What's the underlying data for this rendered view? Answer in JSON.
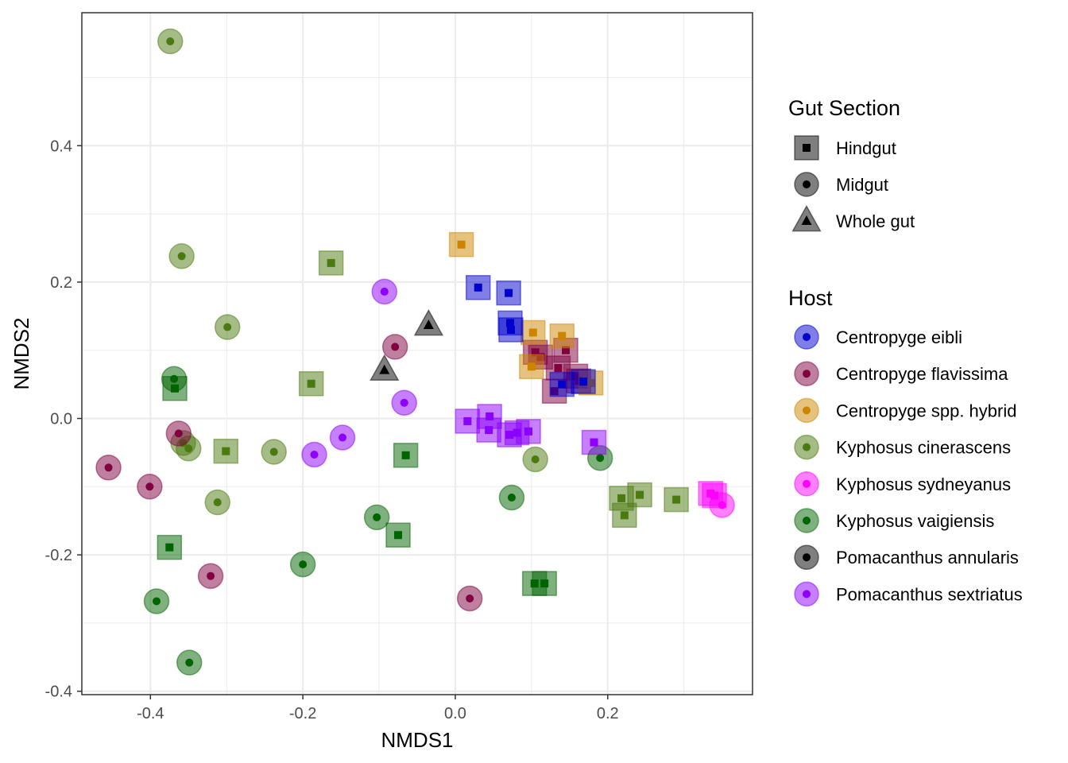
{
  "chart_data": {
    "type": "scatter",
    "xlabel": "NMDS1",
    "ylabel": "NMDS2",
    "xlim": [
      -0.49,
      0.39
    ],
    "ylim": [
      -0.405,
      0.595
    ],
    "x_ticks": [
      -0.4,
      -0.2,
      0.0,
      0.2
    ],
    "x_tick_labels": [
      "-0.4",
      "-0.2",
      "0.0",
      "0.2"
    ],
    "y_ticks": [
      -0.4,
      -0.2,
      0.0,
      0.2,
      0.4
    ],
    "y_tick_labels": [
      "-0.4",
      "-0.2",
      "0.0",
      "0.2",
      "0.4"
    ],
    "grid": true,
    "legend_position": "right",
    "shape_legend": {
      "title": "Gut Section",
      "items": [
        {
          "label": "Hindgut",
          "shape": "square"
        },
        {
          "label": "Midgut",
          "shape": "circle"
        },
        {
          "label": "Whole gut",
          "shape": "triangle"
        }
      ]
    },
    "color_legend": {
      "title": "Host",
      "items": [
        {
          "label": "Centropyge eibli",
          "color": "#0000cd"
        },
        {
          "label": "Centropyge flavissima",
          "color": "#800040"
        },
        {
          "label": "Centropyge spp. hybrid",
          "color": "#cd8500"
        },
        {
          "label": "Kyphosus cinerascens",
          "color": "#4b7a10"
        },
        {
          "label": "Kyphosus sydneyanus",
          "color": "#ff00ff"
        },
        {
          "label": "Kyphosus vaigiensis",
          "color": "#006400"
        },
        {
          "label": "Pomacanthus annularis",
          "color": "#000000"
        },
        {
          "label": "Pomacanthus sextriatus",
          "color": "#8b00ff"
        }
      ]
    },
    "points": [
      {
        "x": -0.374,
        "y": 0.553,
        "host": "Kyphosus cinerascens",
        "gut": "Midgut"
      },
      {
        "x": -0.359,
        "y": 0.238,
        "host": "Kyphosus cinerascens",
        "gut": "Midgut"
      },
      {
        "x": -0.299,
        "y": 0.134,
        "host": "Kyphosus cinerascens",
        "gut": "Midgut"
      },
      {
        "x": -0.357,
        "y": -0.036,
        "host": "Kyphosus cinerascens",
        "gut": "Midgut"
      },
      {
        "x": -0.35,
        "y": -0.044,
        "host": "Kyphosus cinerascens",
        "gut": "Midgut"
      },
      {
        "x": -0.238,
        "y": -0.049,
        "host": "Kyphosus cinerascens",
        "gut": "Midgut"
      },
      {
        "x": -0.312,
        "y": -0.123,
        "host": "Kyphosus cinerascens",
        "gut": "Midgut"
      },
      {
        "x": 0.105,
        "y": -0.06,
        "host": "Kyphosus cinerascens",
        "gut": "Midgut"
      },
      {
        "x": -0.163,
        "y": 0.228,
        "host": "Kyphosus cinerascens",
        "gut": "Hindgut"
      },
      {
        "x": -0.189,
        "y": 0.051,
        "host": "Kyphosus cinerascens",
        "gut": "Hindgut"
      },
      {
        "x": -0.301,
        "y": -0.048,
        "host": "Kyphosus cinerascens",
        "gut": "Hindgut"
      },
      {
        "x": 0.218,
        "y": -0.117,
        "host": "Kyphosus cinerascens",
        "gut": "Hindgut"
      },
      {
        "x": 0.222,
        "y": -0.142,
        "host": "Kyphosus cinerascens",
        "gut": "Hindgut"
      },
      {
        "x": 0.242,
        "y": -0.112,
        "host": "Kyphosus cinerascens",
        "gut": "Hindgut"
      },
      {
        "x": 0.29,
        "y": -0.119,
        "host": "Kyphosus cinerascens",
        "gut": "Hindgut"
      },
      {
        "x": -0.369,
        "y": 0.058,
        "host": "Kyphosus vaigiensis",
        "gut": "Midgut"
      },
      {
        "x": -0.103,
        "y": -0.145,
        "host": "Kyphosus vaigiensis",
        "gut": "Midgut"
      },
      {
        "x": 0.074,
        "y": -0.116,
        "host": "Kyphosus vaigiensis",
        "gut": "Midgut"
      },
      {
        "x": 0.19,
        "y": -0.058,
        "host": "Kyphosus vaigiensis",
        "gut": "Midgut"
      },
      {
        "x": -0.2,
        "y": -0.214,
        "host": "Kyphosus vaigiensis",
        "gut": "Midgut"
      },
      {
        "x": -0.392,
        "y": -0.268,
        "host": "Kyphosus vaigiensis",
        "gut": "Midgut"
      },
      {
        "x": -0.349,
        "y": -0.358,
        "host": "Kyphosus vaigiensis",
        "gut": "Midgut"
      },
      {
        "x": -0.368,
        "y": 0.044,
        "host": "Kyphosus vaigiensis",
        "gut": "Hindgut"
      },
      {
        "x": -0.065,
        "y": -0.054,
        "host": "Kyphosus vaigiensis",
        "gut": "Hindgut"
      },
      {
        "x": -0.075,
        "y": -0.171,
        "host": "Kyphosus vaigiensis",
        "gut": "Hindgut"
      },
      {
        "x": -0.375,
        "y": -0.189,
        "host": "Kyphosus vaigiensis",
        "gut": "Hindgut"
      },
      {
        "x": 0.104,
        "y": -0.242,
        "host": "Kyphosus vaigiensis",
        "gut": "Hindgut"
      },
      {
        "x": 0.117,
        "y": -0.242,
        "host": "Kyphosus vaigiensis",
        "gut": "Hindgut"
      },
      {
        "x": -0.455,
        "y": -0.072,
        "host": "Centropyge flavissima",
        "gut": "Midgut"
      },
      {
        "x": -0.401,
        "y": -0.1,
        "host": "Centropyge flavissima",
        "gut": "Midgut"
      },
      {
        "x": -0.363,
        "y": -0.022,
        "host": "Centropyge flavissima",
        "gut": "Midgut"
      },
      {
        "x": -0.321,
        "y": -0.231,
        "host": "Centropyge flavissima",
        "gut": "Midgut"
      },
      {
        "x": -0.079,
        "y": 0.105,
        "host": "Centropyge flavissima",
        "gut": "Midgut"
      },
      {
        "x": 0.019,
        "y": -0.264,
        "host": "Centropyge flavissima",
        "gut": "Midgut"
      },
      {
        "x": 0.105,
        "y": 0.097,
        "host": "Centropyge flavissima",
        "gut": "Hindgut"
      },
      {
        "x": 0.112,
        "y": 0.09,
        "host": "Centropyge flavissima",
        "gut": "Hindgut"
      },
      {
        "x": 0.145,
        "y": 0.1,
        "host": "Centropyge flavissima",
        "gut": "Hindgut"
      },
      {
        "x": 0.135,
        "y": 0.074,
        "host": "Centropyge flavissima",
        "gut": "Hindgut"
      },
      {
        "x": 0.158,
        "y": 0.062,
        "host": "Centropyge flavissima",
        "gut": "Hindgut"
      },
      {
        "x": 0.162,
        "y": 0.055,
        "host": "Centropyge flavissima",
        "gut": "Hindgut"
      },
      {
        "x": 0.13,
        "y": 0.04,
        "host": "Centropyge flavissima",
        "gut": "Hindgut"
      },
      {
        "x": 0.008,
        "y": 0.255,
        "host": "Centropyge spp. hybrid",
        "gut": "Hindgut"
      },
      {
        "x": 0.102,
        "y": 0.126,
        "host": "Centropyge spp. hybrid",
        "gut": "Hindgut"
      },
      {
        "x": 0.14,
        "y": 0.121,
        "host": "Centropyge spp. hybrid",
        "gut": "Hindgut"
      },
      {
        "x": 0.1,
        "y": 0.076,
        "host": "Centropyge spp. hybrid",
        "gut": "Hindgut"
      },
      {
        "x": 0.178,
        "y": 0.052,
        "host": "Centropyge spp. hybrid",
        "gut": "Hindgut"
      },
      {
        "x": 0.03,
        "y": 0.192,
        "host": "Centropyge eibli",
        "gut": "Hindgut"
      },
      {
        "x": 0.07,
        "y": 0.184,
        "host": "Centropyge eibli",
        "gut": "Hindgut"
      },
      {
        "x": 0.072,
        "y": 0.14,
        "host": "Centropyge eibli",
        "gut": "Hindgut"
      },
      {
        "x": 0.073,
        "y": 0.13,
        "host": "Centropyge eibli",
        "gut": "Hindgut"
      },
      {
        "x": 0.14,
        "y": 0.05,
        "host": "Centropyge eibli",
        "gut": "Hindgut"
      },
      {
        "x": 0.168,
        "y": 0.054,
        "host": "Centropyge eibli",
        "gut": "Hindgut"
      },
      {
        "x": -0.093,
        "y": 0.186,
        "host": "Pomacanthus sextriatus",
        "gut": "Midgut"
      },
      {
        "x": -0.067,
        "y": 0.023,
        "host": "Pomacanthus sextriatus",
        "gut": "Midgut"
      },
      {
        "x": -0.148,
        "y": -0.028,
        "host": "Pomacanthus sextriatus",
        "gut": "Midgut"
      },
      {
        "x": -0.185,
        "y": -0.053,
        "host": "Pomacanthus sextriatus",
        "gut": "Midgut"
      },
      {
        "x": 0.016,
        "y": -0.004,
        "host": "Pomacanthus sextriatus",
        "gut": "Hindgut"
      },
      {
        "x": 0.045,
        "y": 0.003,
        "host": "Pomacanthus sextriatus",
        "gut": "Hindgut"
      },
      {
        "x": 0.044,
        "y": -0.017,
        "host": "Pomacanthus sextriatus",
        "gut": "Hindgut"
      },
      {
        "x": 0.071,
        "y": -0.024,
        "host": "Pomacanthus sextriatus",
        "gut": "Hindgut"
      },
      {
        "x": 0.081,
        "y": -0.021,
        "host": "Pomacanthus sextriatus",
        "gut": "Hindgut"
      },
      {
        "x": 0.096,
        "y": -0.019,
        "host": "Pomacanthus sextriatus",
        "gut": "Hindgut"
      },
      {
        "x": 0.182,
        "y": -0.035,
        "host": "Pomacanthus sextriatus",
        "gut": "Hindgut"
      },
      {
        "x": -0.035,
        "y": 0.137,
        "host": "Pomacanthus annularis",
        "gut": "Whole gut"
      },
      {
        "x": -0.093,
        "y": 0.071,
        "host": "Pomacanthus annularis",
        "gut": "Whole gut"
      },
      {
        "x": 0.34,
        "y": -0.113,
        "host": "Kyphosus sydneyanus",
        "gut": "Hindgut"
      },
      {
        "x": 0.335,
        "y": -0.11,
        "host": "Kyphosus sydneyanus",
        "gut": "Hindgut"
      },
      {
        "x": 0.35,
        "y": -0.127,
        "host": "Kyphosus sydneyanus",
        "gut": "Midgut"
      }
    ]
  }
}
